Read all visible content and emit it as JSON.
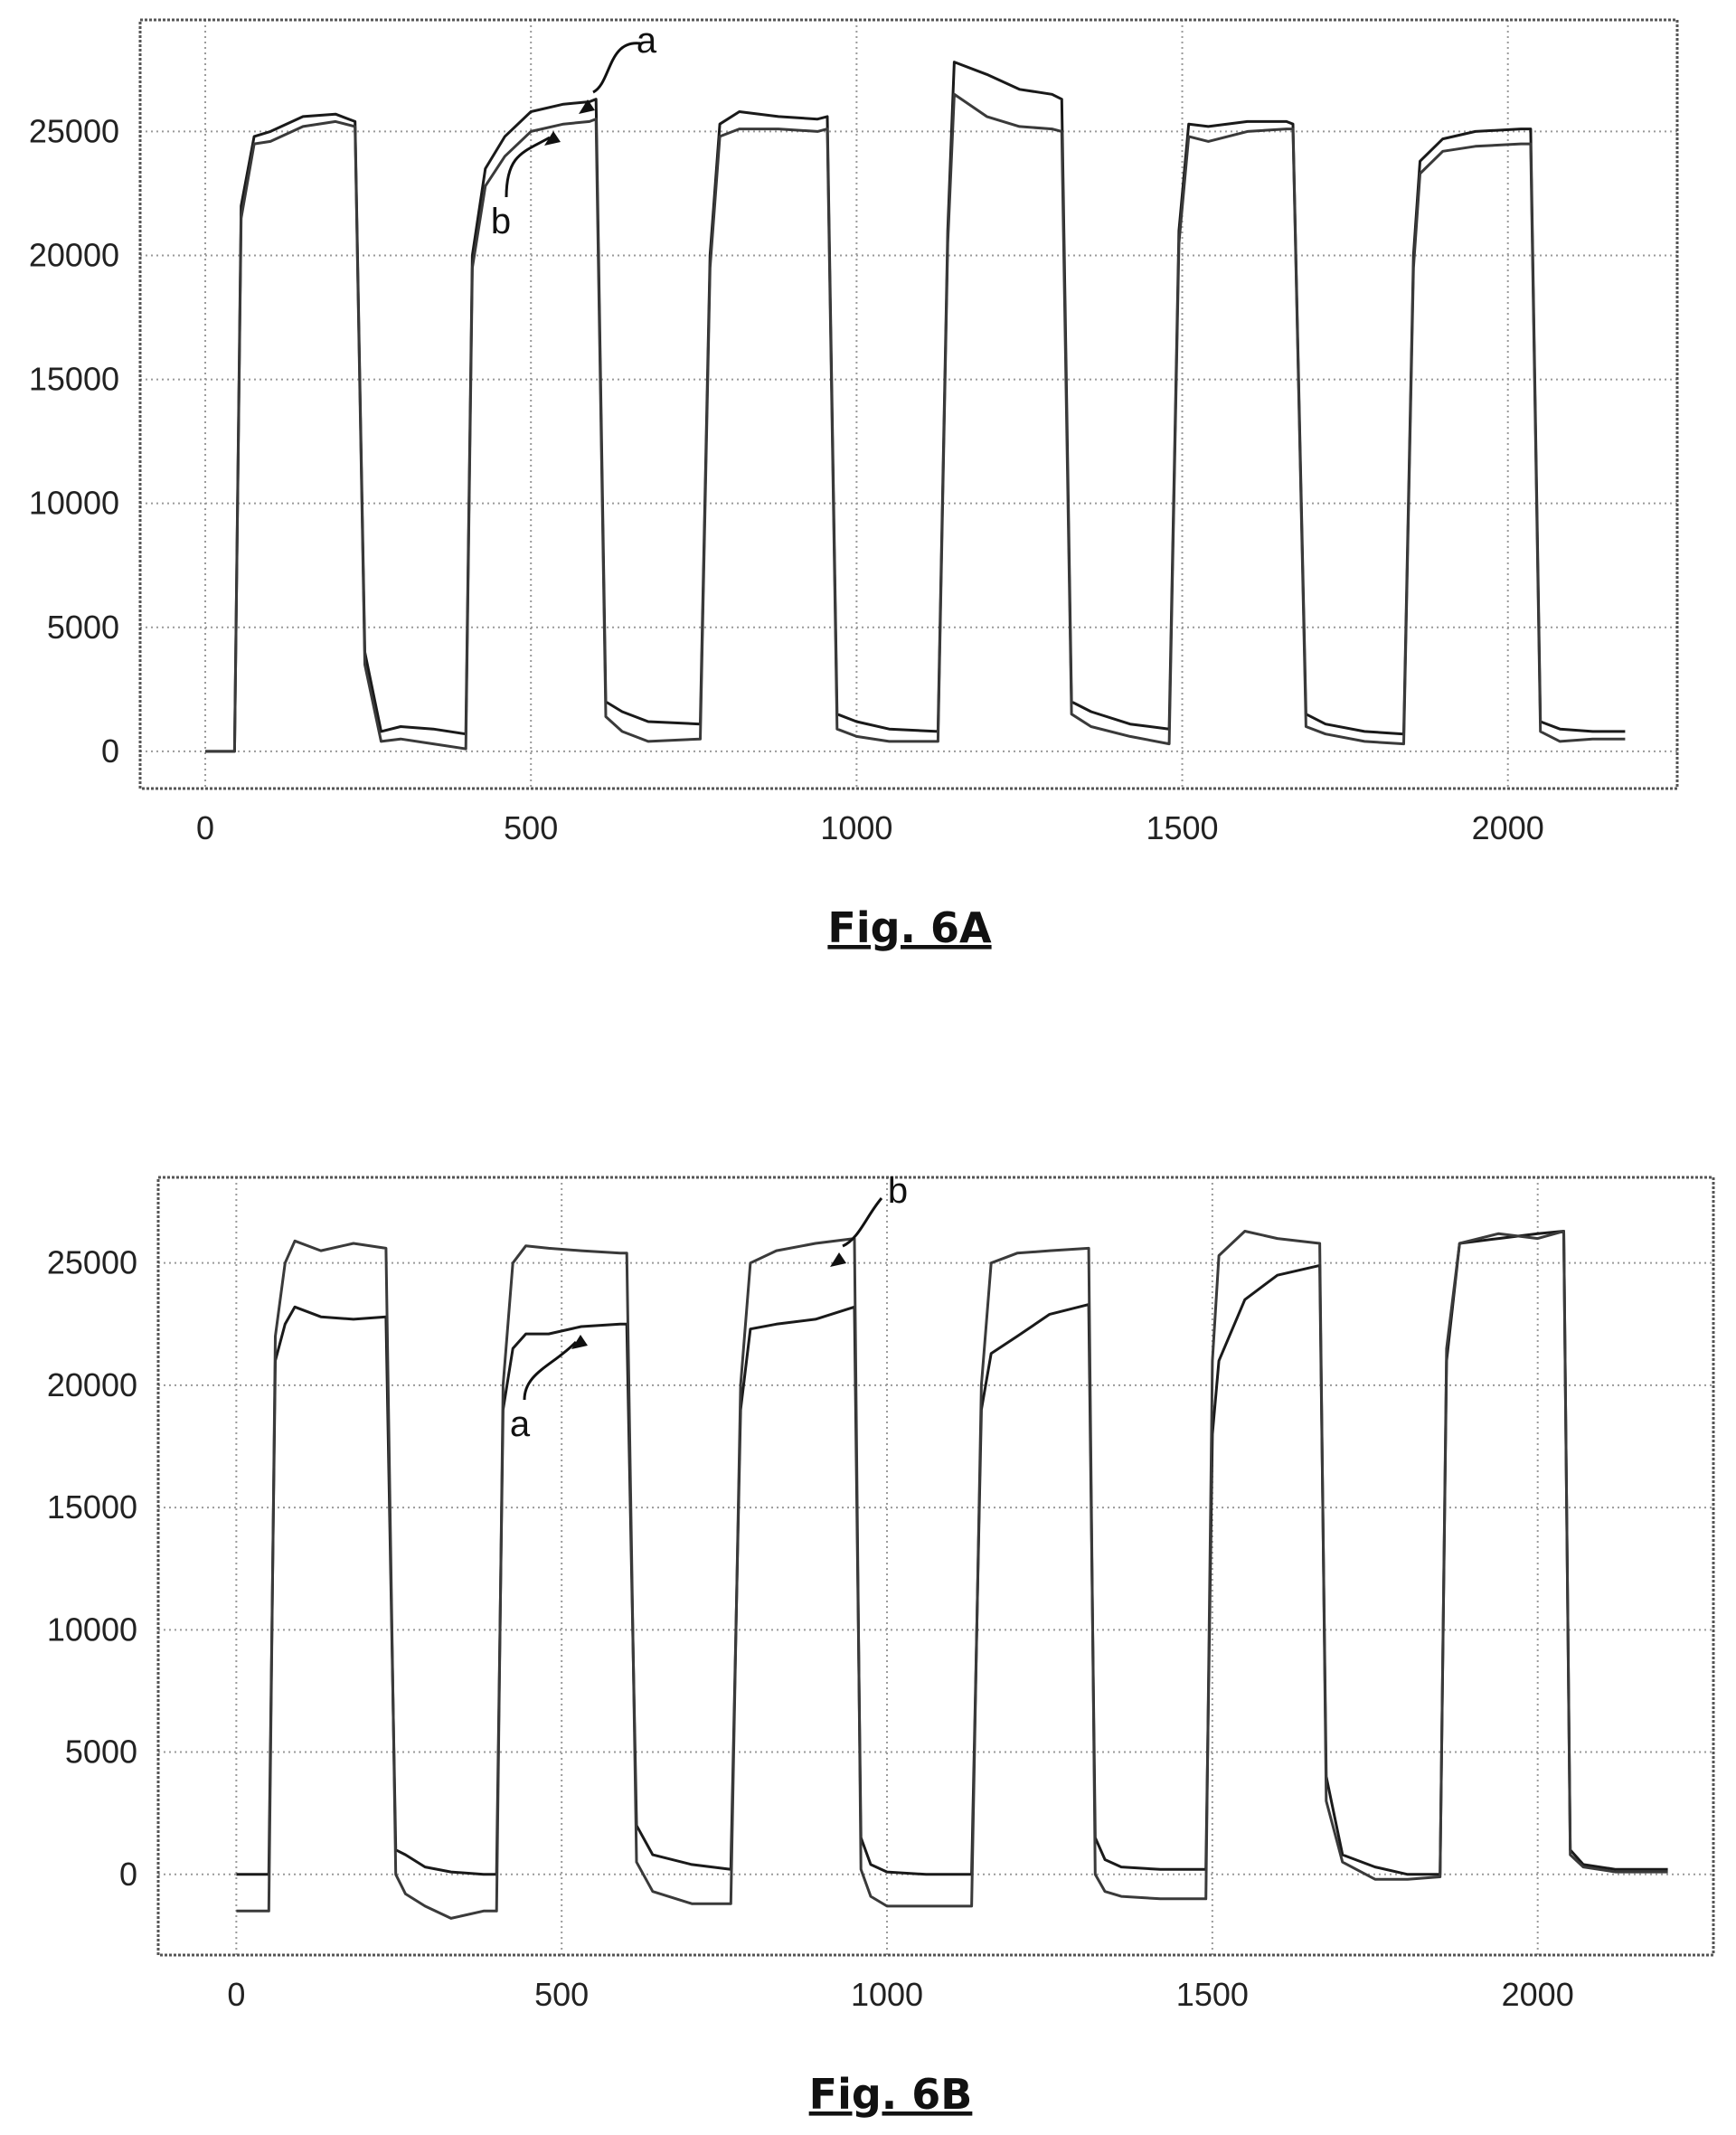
{
  "chart_data": [
    {
      "type": "line",
      "title": "",
      "caption": "Fig. 6A",
      "xlabel": "",
      "ylabel": "",
      "xlim": [
        -100,
        2260
      ],
      "ylim": [
        -1500,
        29500
      ],
      "xticks": [
        0,
        500,
        1000,
        1500,
        2000
      ],
      "yticks": [
        0,
        5000,
        10000,
        15000,
        20000,
        25000
      ],
      "xtick_labels": [
        "0",
        "500",
        "1000",
        "1500",
        "2000"
      ],
      "ytick_labels": [
        "0",
        "5000",
        "10000",
        "15000",
        "20000",
        "25000"
      ],
      "grid": true,
      "legend": "none",
      "series": [
        {
          "name": "a",
          "x": [
            0,
            45,
            55,
            75,
            100,
            150,
            200,
            230,
            245,
            270,
            300,
            350,
            400,
            410,
            430,
            460,
            500,
            550,
            590,
            600,
            615,
            640,
            680,
            760,
            775,
            790,
            820,
            880,
            940,
            955,
            970,
            1000,
            1050,
            1125,
            1140,
            1150,
            1200,
            1250,
            1300,
            1315,
            1330,
            1360,
            1420,
            1480,
            1495,
            1510,
            1540,
            1600,
            1660,
            1670,
            1690,
            1720,
            1780,
            1840,
            1855,
            1865,
            1900,
            1950,
            2020,
            2035,
            2050,
            2080,
            2130,
            2180
          ],
          "y": [
            0,
            0,
            22000,
            24800,
            25000,
            25600,
            25700,
            25400,
            4000,
            800,
            1000,
            900,
            700,
            20000,
            23500,
            24800,
            25800,
            26100,
            26200,
            26300,
            2000,
            1600,
            1200,
            1100,
            20000,
            25300,
            25800,
            25600,
            25500,
            25600,
            1500,
            1200,
            900,
            800,
            21000,
            27800,
            27300,
            26700,
            26500,
            26300,
            2000,
            1600,
            1100,
            900,
            21000,
            25300,
            25200,
            25400,
            25400,
            25300,
            1500,
            1100,
            800,
            700,
            20000,
            23800,
            24700,
            25000,
            25100,
            25100,
            1200,
            900,
            800,
            800
          ]
        },
        {
          "name": "b",
          "x": [
            0,
            45,
            55,
            75,
            100,
            150,
            200,
            230,
            245,
            270,
            300,
            350,
            400,
            410,
            430,
            460,
            500,
            550,
            590,
            600,
            615,
            640,
            680,
            760,
            775,
            790,
            820,
            880,
            940,
            955,
            970,
            1000,
            1050,
            1125,
            1140,
            1150,
            1200,
            1250,
            1300,
            1315,
            1330,
            1360,
            1420,
            1480,
            1495,
            1510,
            1540,
            1600,
            1660,
            1670,
            1690,
            1720,
            1780,
            1840,
            1855,
            1865,
            1900,
            1950,
            2020,
            2035,
            2050,
            2080,
            2130,
            2180
          ],
          "y": [
            0,
            0,
            21500,
            24500,
            24600,
            25200,
            25400,
            25200,
            3500,
            400,
            500,
            300,
            100,
            19500,
            22800,
            24000,
            25000,
            25300,
            25400,
            25500,
            1400,
            800,
            400,
            500,
            19500,
            24800,
            25100,
            25100,
            25000,
            25100,
            900,
            600,
            400,
            400,
            20500,
            26500,
            25600,
            25200,
            25100,
            25000,
            1500,
            1000,
            600,
            300,
            20500,
            24800,
            24600,
            25000,
            25100,
            25100,
            1000,
            700,
            400,
            300,
            19500,
            23300,
            24200,
            24400,
            24500,
            24500,
            800,
            400,
            500,
            500
          ]
        }
      ],
      "annotations": [
        "a",
        "b"
      ]
    },
    {
      "type": "line",
      "title": "",
      "caption": "Fig. 6B",
      "xlabel": "",
      "ylabel": "",
      "xlim": [
        -120,
        2270
      ],
      "ylim": [
        -3300,
        28500
      ],
      "xticks": [
        0,
        500,
        1000,
        1500,
        2000
      ],
      "yticks": [
        0,
        5000,
        10000,
        15000,
        20000,
        25000
      ],
      "xtick_labels": [
        "0",
        "500",
        "1000",
        "1500",
        "2000"
      ],
      "ytick_labels": [
        "0",
        "5000",
        "10000",
        "15000",
        "20000",
        "25000"
      ],
      "grid": true,
      "legend": "none",
      "series": [
        {
          "name": "a",
          "x": [
            0,
            50,
            60,
            75,
            90,
            130,
            180,
            230,
            245,
            260,
            290,
            330,
            380,
            400,
            410,
            425,
            445,
            480,
            530,
            590,
            600,
            615,
            640,
            700,
            760,
            775,
            790,
            830,
            890,
            950,
            960,
            975,
            1000,
            1060,
            1130,
            1145,
            1160,
            1200,
            1250,
            1310,
            1320,
            1335,
            1360,
            1420,
            1490,
            1500,
            1510,
            1550,
            1600,
            1665,
            1675,
            1700,
            1750,
            1800,
            1850,
            1860,
            1880,
            1940,
            2000,
            2040,
            2050,
            2070,
            2120,
            2200
          ],
          "y": [
            0,
            0,
            21000,
            22500,
            23200,
            22800,
            22700,
            22800,
            1000,
            800,
            300,
            100,
            0,
            0,
            19000,
            21500,
            22100,
            22100,
            22400,
            22500,
            22500,
            2000,
            800,
            400,
            200,
            19000,
            22300,
            22500,
            22700,
            23200,
            1500,
            400,
            100,
            0,
            0,
            19000,
            21300,
            22000,
            22900,
            23300,
            1500,
            600,
            300,
            200,
            200,
            18000,
            21000,
            23500,
            24500,
            24900,
            4000,
            800,
            300,
            0,
            0,
            21000,
            25800,
            26000,
            26200,
            26300,
            1000,
            400,
            200,
            200
          ]
        },
        {
          "name": "b",
          "x": [
            0,
            50,
            60,
            75,
            90,
            130,
            180,
            230,
            245,
            260,
            290,
            330,
            380,
            400,
            410,
            425,
            445,
            480,
            530,
            590,
            600,
            615,
            640,
            700,
            760,
            775,
            790,
            830,
            890,
            950,
            960,
            975,
            1000,
            1060,
            1130,
            1145,
            1160,
            1200,
            1250,
            1310,
            1320,
            1335,
            1360,
            1420,
            1490,
            1500,
            1510,
            1550,
            1600,
            1665,
            1675,
            1700,
            1750,
            1800,
            1850,
            1860,
            1880,
            1940,
            2000,
            2040,
            2050,
            2070,
            2120,
            2200
          ],
          "y": [
            -1500,
            -1500,
            22000,
            25000,
            25900,
            25500,
            25800,
            25600,
            0,
            -800,
            -1300,
            -1800,
            -1500,
            -1500,
            20000,
            25000,
            25700,
            25600,
            25500,
            25400,
            25400,
            500,
            -700,
            -1200,
            -1200,
            20000,
            25000,
            25500,
            25800,
            26000,
            200,
            -900,
            -1300,
            -1300,
            -1300,
            20000,
            25000,
            25400,
            25500,
            25600,
            0,
            -700,
            -900,
            -1000,
            -1000,
            21000,
            25300,
            26300,
            26000,
            25800,
            3000,
            500,
            -200,
            -200,
            -100,
            21500,
            25800,
            26200,
            26000,
            26300,
            800,
            300,
            100,
            100
          ]
        }
      ],
      "annotations": [
        "b",
        "a"
      ]
    }
  ]
}
